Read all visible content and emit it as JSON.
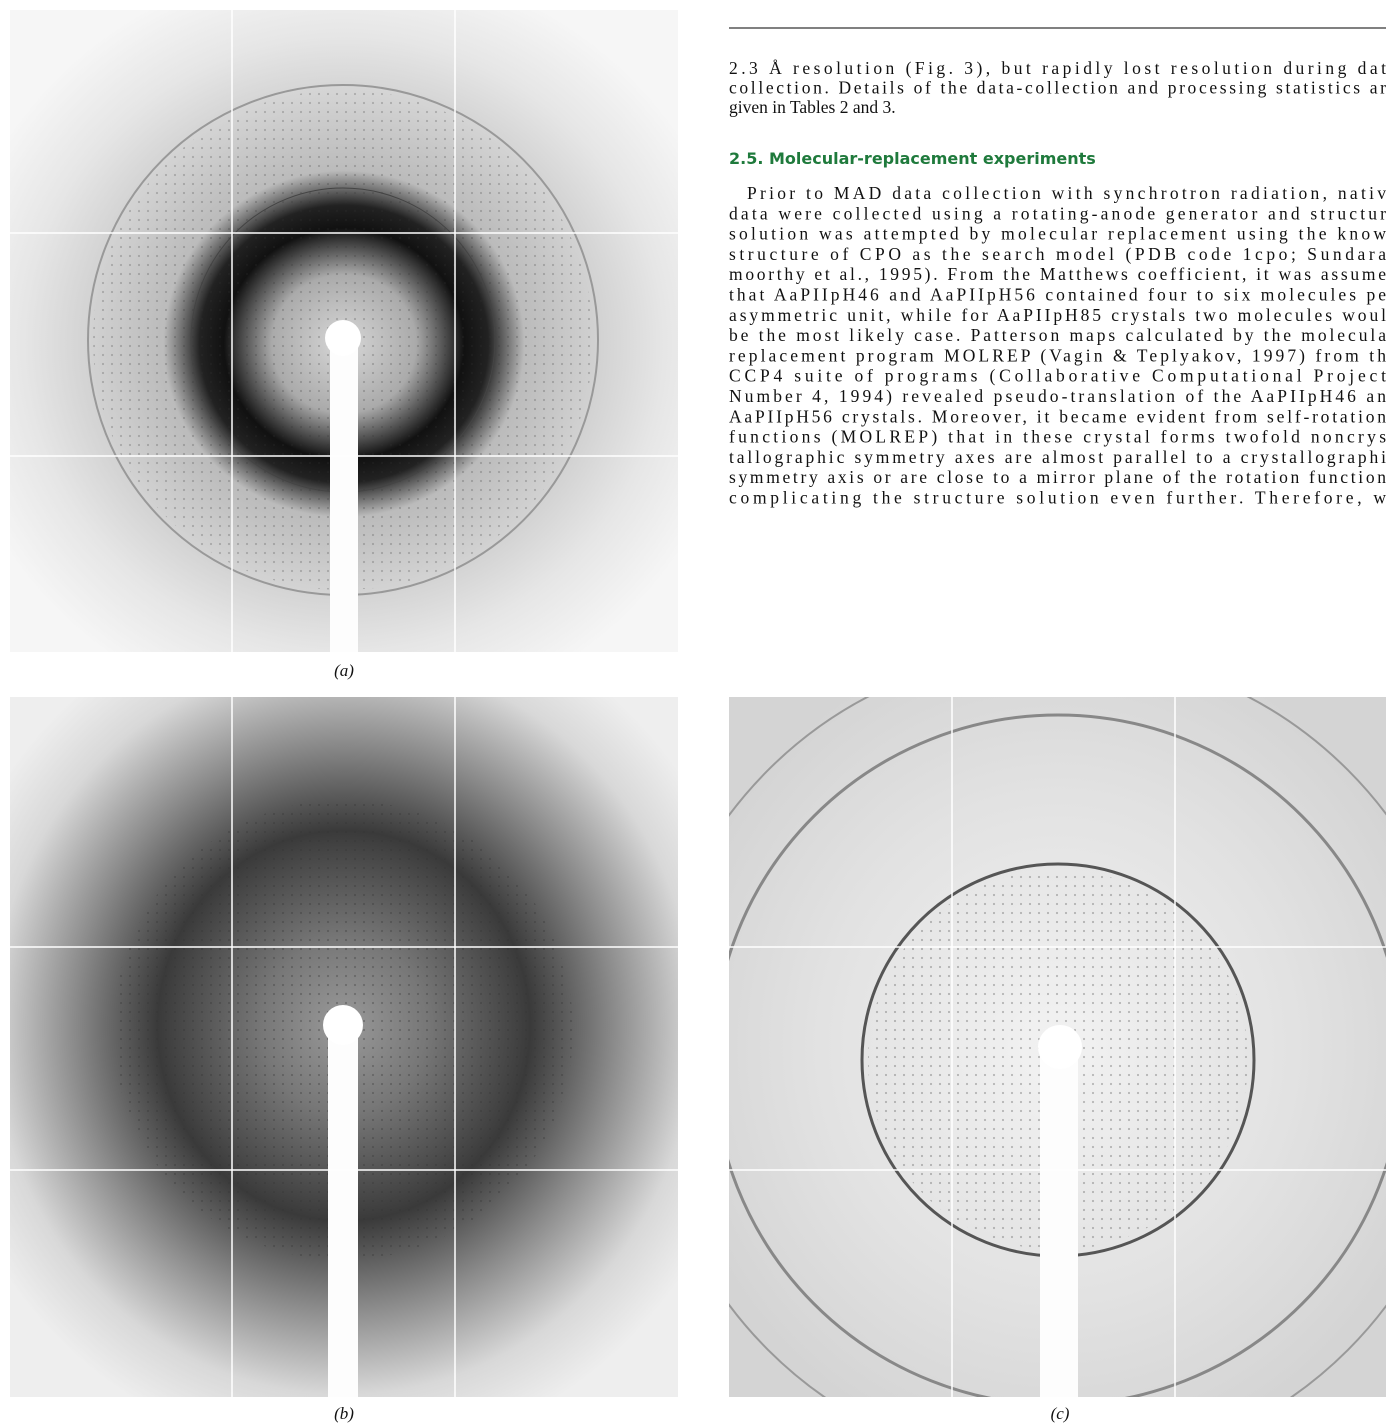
{
  "figure": {
    "panels": [
      {
        "label": "(a)"
      },
      {
        "label": "(b)"
      },
      {
        "label": "(c)"
      }
    ]
  },
  "text": {
    "paragraph1": [
      "2.3 Å resolution (Fig. 3), but rapidly lost resolution during dat",
      "collection. Details of the data-collection and processing statistics ar",
      "given in Tables 2 and 3."
    ],
    "heading": "2.5. Molecular-replacement experiments",
    "paragraph2": [
      "Prior to MAD data collection with synchrotron radiation, nativ",
      "data were collected using a rotating-anode generator and structur",
      "solution was attempted by molecular replacement using the know",
      "structure of CPO as the search model (PDB code 1cpo; Sundara",
      "moorthy et al., 1995). From the Matthews coefficient, it was assume",
      "that AaPIIpH46 and AaPIIpH56 contained four to six molecules pe",
      "asymmetric unit, while for AaPIIpH85 crystals two molecules woul",
      "be the most likely case. Patterson maps calculated by the molecula",
      "replacement program MOLREP (Vagin & Teplyakov, 1997) from th",
      "CCP4 suite of programs (Collaborative Computational Project",
      "Number 4, 1994) revealed pseudo-translation of the AaPIIpH46 an",
      "AaPIIpH56 crystals. Moreover, it became evident from self-rotation",
      "functions (MOLREP) that in these crystal forms twofold noncrys",
      "tallographic symmetry axes are almost parallel to a crystallographi",
      "symmetry axis or are close to a mirror plane of the rotation function",
      "complicating the structure solution even further. Therefore, w"
    ]
  }
}
